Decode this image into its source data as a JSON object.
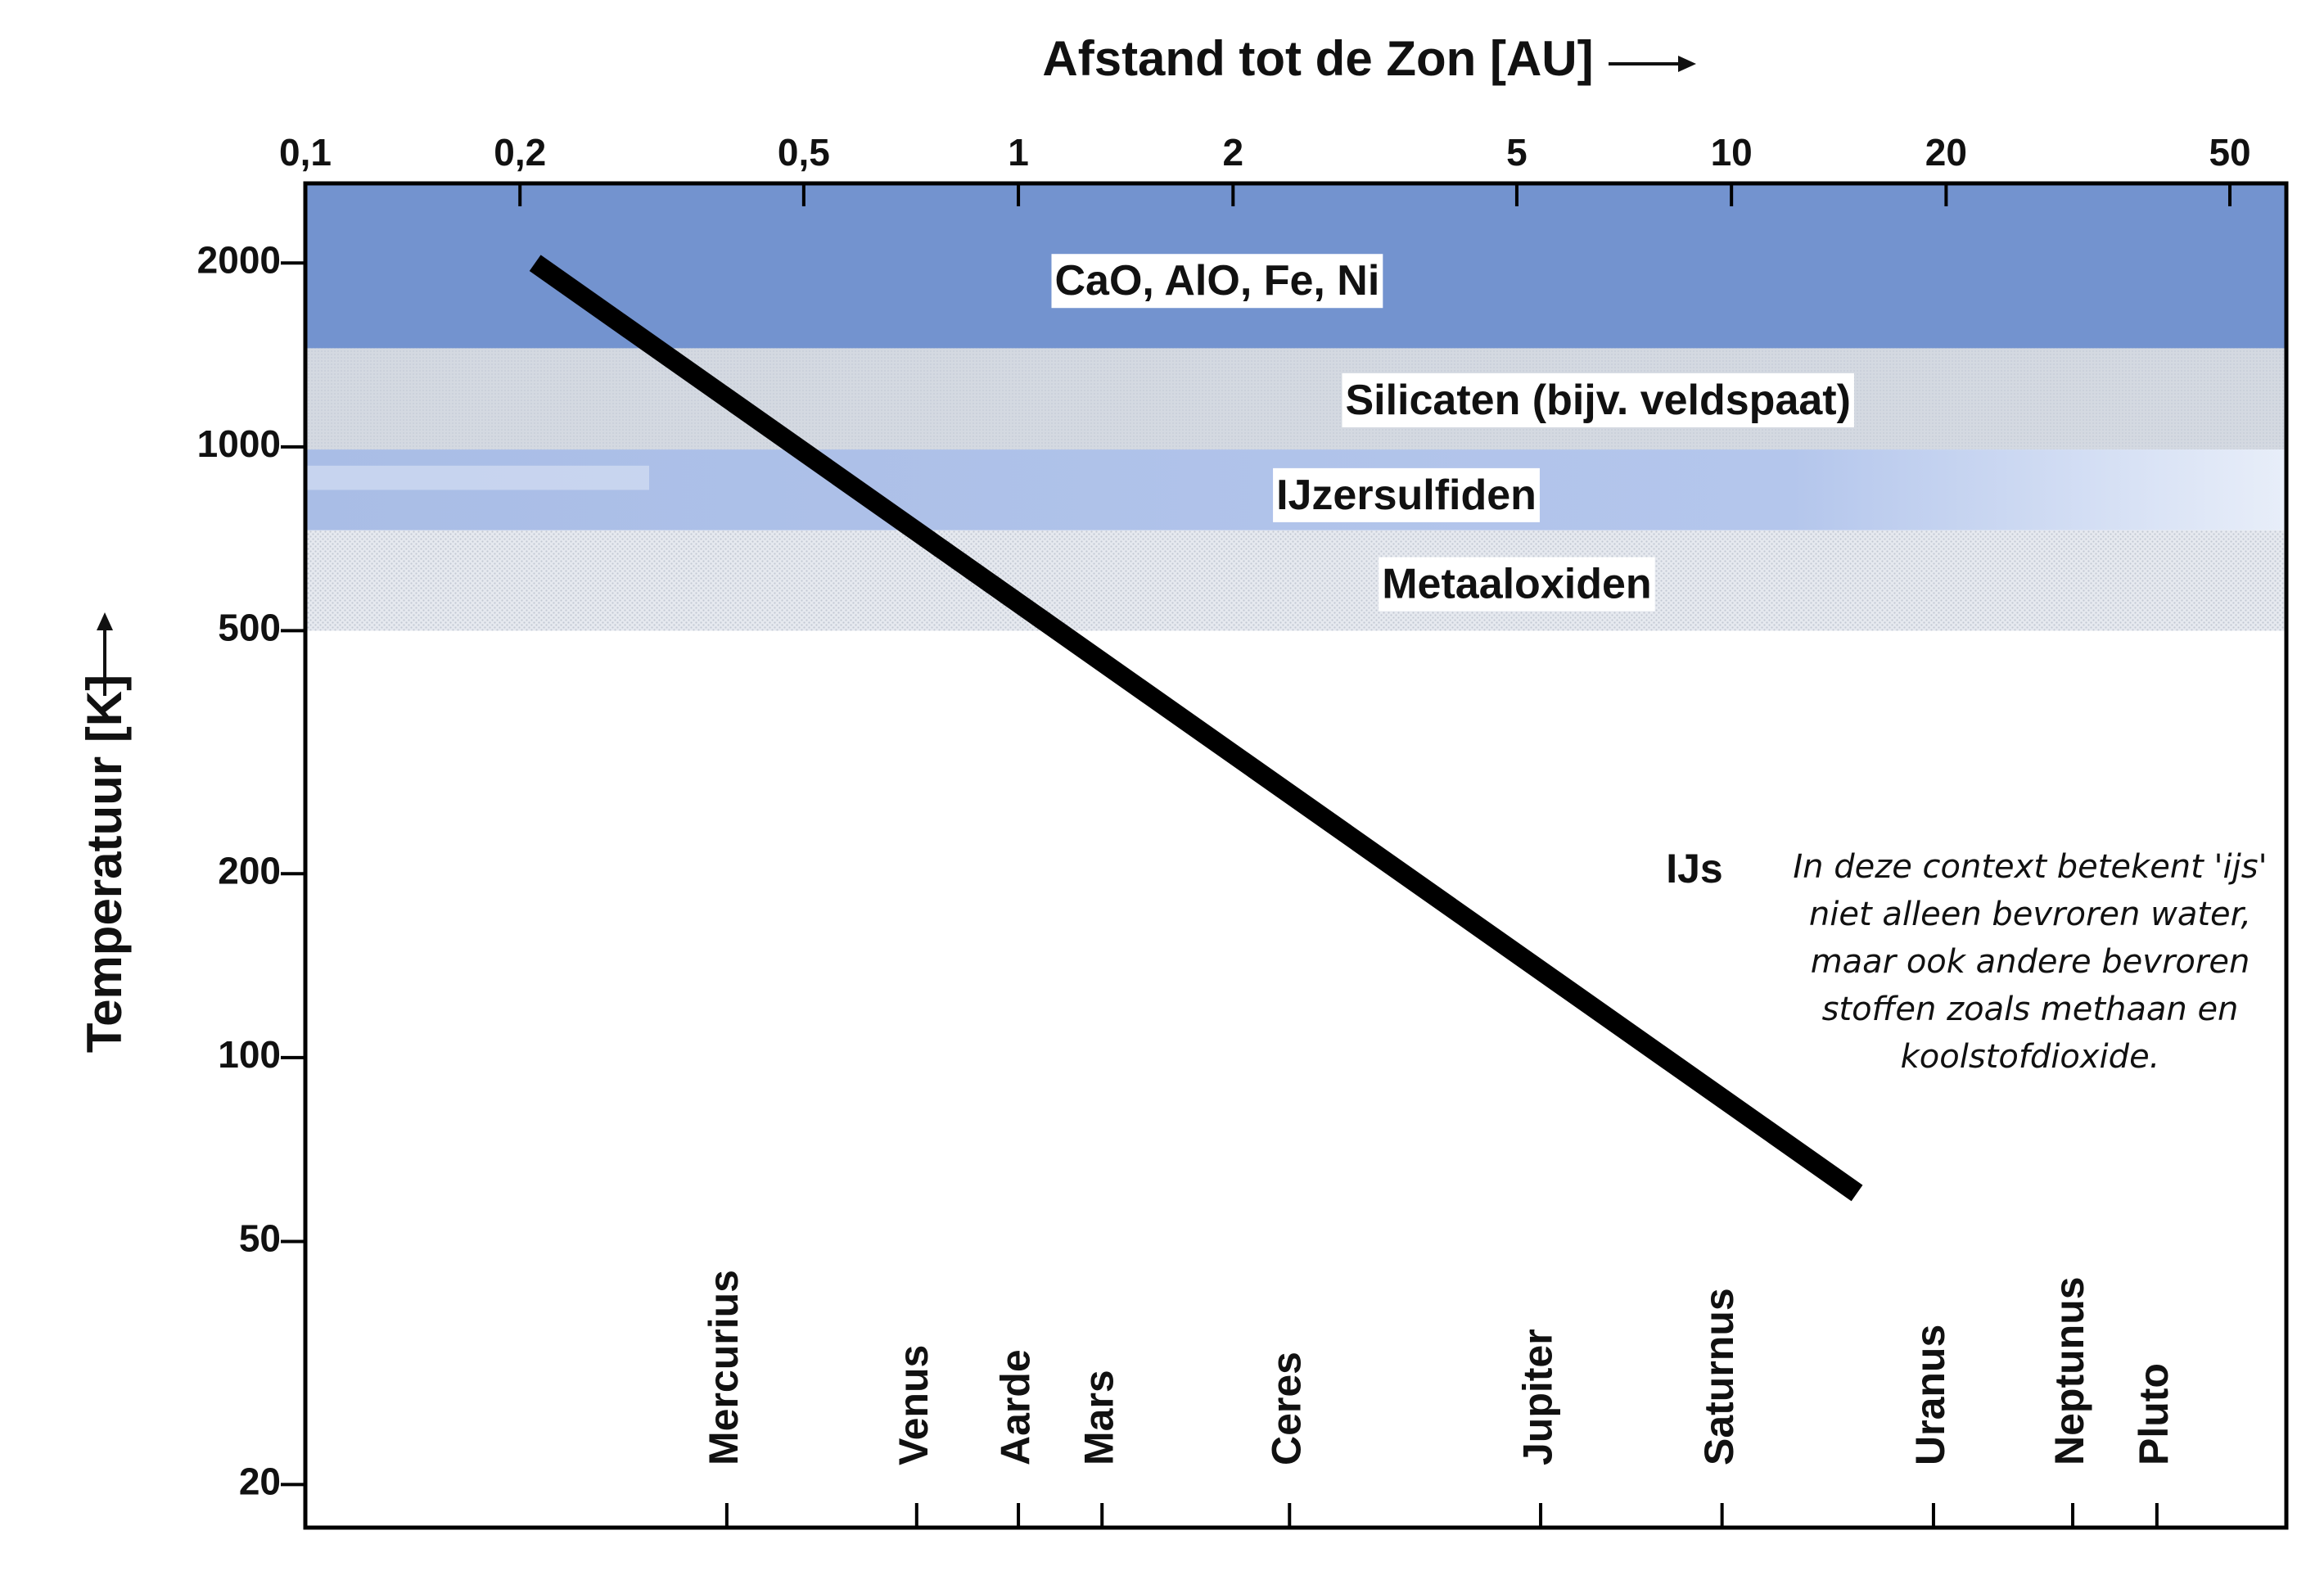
{
  "chart_data": {
    "type": "line",
    "x_axis": {
      "label": "Afstand tot de Zon [AU]",
      "scale": "log",
      "position": "top",
      "range": [
        0.1,
        60
      ],
      "ticks": [
        {
          "value": 0.1,
          "label": "0,1"
        },
        {
          "value": 0.2,
          "label": "0,2"
        },
        {
          "value": 0.5,
          "label": "0,5"
        },
        {
          "value": 1,
          "label": "1"
        },
        {
          "value": 2,
          "label": "2"
        },
        {
          "value": 5,
          "label": "5"
        },
        {
          "value": 10,
          "label": "10"
        },
        {
          "value": 20,
          "label": "20"
        },
        {
          "value": 50,
          "label": "50"
        }
      ]
    },
    "y_axis": {
      "label": "Temperatuur [K]",
      "scale": "log",
      "range": [
        17,
        2700
      ],
      "ticks": [
        {
          "value": 2000,
          "label": "2000"
        },
        {
          "value": 1000,
          "label": "1000"
        },
        {
          "value": 500,
          "label": "500"
        },
        {
          "value": 200,
          "label": "200"
        },
        {
          "value": 100,
          "label": "100"
        },
        {
          "value": 50,
          "label": "50"
        },
        {
          "value": 20,
          "label": "20"
        }
      ]
    },
    "line": {
      "points": [
        [
          0.21,
          2000
        ],
        [
          15,
          60
        ]
      ],
      "color": "#000000"
    },
    "bands": [
      {
        "label": "CaO, AlO, Fe, Ni",
        "y_min": 1450,
        "y_max": 2700,
        "style": "solid",
        "color": "#7393cf",
        "label_x": 1.9,
        "label_y": 1850
      },
      {
        "label": "Silicaten (bijv. veldspaat)",
        "y_min": 990,
        "y_max": 1450,
        "style": "grey",
        "color": "#d3d8e0",
        "label_x": 6.5,
        "label_y": 1180
      },
      {
        "label": "IJzersulfiden",
        "y_min": 730,
        "y_max": 990,
        "style": "gradient",
        "color": "#b7c8ea",
        "label_x": 3.5,
        "label_y": 825
      },
      {
        "label": "Metaaloxiden",
        "y_min": 500,
        "y_max": 730,
        "style": "dotted",
        "color": "#d9dee7",
        "label_x": 5.0,
        "label_y": 590
      }
    ],
    "ice_label": "IJs",
    "note": [
      "In deze context betekent 'ijs'",
      "niet alleen bevroren water,",
      "maar ook andere bevroren",
      "stoffen zoals methaan en",
      "koolstofdioxide."
    ],
    "planets": [
      {
        "name": "Mercurius",
        "distance": 0.39
      },
      {
        "name": "Venus",
        "distance": 0.72
      },
      {
        "name": "Aarde",
        "distance": 1.0
      },
      {
        "name": "Mars",
        "distance": 1.31
      },
      {
        "name": "Ceres",
        "distance": 2.4
      },
      {
        "name": "Jupiter",
        "distance": 5.4
      },
      {
        "name": "Saturnus",
        "distance": 9.7
      },
      {
        "name": "Uranus",
        "distance": 19.2
      },
      {
        "name": "Neptunus",
        "distance": 30.1
      },
      {
        "name": "Pluto",
        "distance": 39.5
      }
    ]
  }
}
